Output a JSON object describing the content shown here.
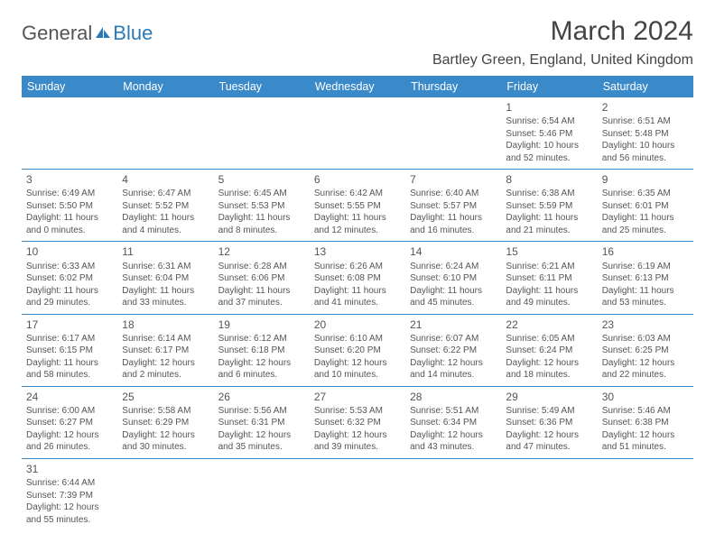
{
  "logo": {
    "text1": "General",
    "text2": "Blue",
    "icon_color": "#2a7ab8"
  },
  "title": "March 2024",
  "location": "Bartley Green, England, United Kingdom",
  "header_bg": "#3a89c9",
  "header_fg": "#ffffff",
  "border_color": "#3a89c9",
  "text_color": "#555555",
  "day_headers": [
    "Sunday",
    "Monday",
    "Tuesday",
    "Wednesday",
    "Thursday",
    "Friday",
    "Saturday"
  ],
  "weeks": [
    [
      null,
      null,
      null,
      null,
      null,
      {
        "n": "1",
        "sunrise": "Sunrise: 6:54 AM",
        "sunset": "Sunset: 5:46 PM",
        "day": "Daylight: 10 hours and 52 minutes."
      },
      {
        "n": "2",
        "sunrise": "Sunrise: 6:51 AM",
        "sunset": "Sunset: 5:48 PM",
        "day": "Daylight: 10 hours and 56 minutes."
      }
    ],
    [
      {
        "n": "3",
        "sunrise": "Sunrise: 6:49 AM",
        "sunset": "Sunset: 5:50 PM",
        "day": "Daylight: 11 hours and 0 minutes."
      },
      {
        "n": "4",
        "sunrise": "Sunrise: 6:47 AM",
        "sunset": "Sunset: 5:52 PM",
        "day": "Daylight: 11 hours and 4 minutes."
      },
      {
        "n": "5",
        "sunrise": "Sunrise: 6:45 AM",
        "sunset": "Sunset: 5:53 PM",
        "day": "Daylight: 11 hours and 8 minutes."
      },
      {
        "n": "6",
        "sunrise": "Sunrise: 6:42 AM",
        "sunset": "Sunset: 5:55 PM",
        "day": "Daylight: 11 hours and 12 minutes."
      },
      {
        "n": "7",
        "sunrise": "Sunrise: 6:40 AM",
        "sunset": "Sunset: 5:57 PM",
        "day": "Daylight: 11 hours and 16 minutes."
      },
      {
        "n": "8",
        "sunrise": "Sunrise: 6:38 AM",
        "sunset": "Sunset: 5:59 PM",
        "day": "Daylight: 11 hours and 21 minutes."
      },
      {
        "n": "9",
        "sunrise": "Sunrise: 6:35 AM",
        "sunset": "Sunset: 6:01 PM",
        "day": "Daylight: 11 hours and 25 minutes."
      }
    ],
    [
      {
        "n": "10",
        "sunrise": "Sunrise: 6:33 AM",
        "sunset": "Sunset: 6:02 PM",
        "day": "Daylight: 11 hours and 29 minutes."
      },
      {
        "n": "11",
        "sunrise": "Sunrise: 6:31 AM",
        "sunset": "Sunset: 6:04 PM",
        "day": "Daylight: 11 hours and 33 minutes."
      },
      {
        "n": "12",
        "sunrise": "Sunrise: 6:28 AM",
        "sunset": "Sunset: 6:06 PM",
        "day": "Daylight: 11 hours and 37 minutes."
      },
      {
        "n": "13",
        "sunrise": "Sunrise: 6:26 AM",
        "sunset": "Sunset: 6:08 PM",
        "day": "Daylight: 11 hours and 41 minutes."
      },
      {
        "n": "14",
        "sunrise": "Sunrise: 6:24 AM",
        "sunset": "Sunset: 6:10 PM",
        "day": "Daylight: 11 hours and 45 minutes."
      },
      {
        "n": "15",
        "sunrise": "Sunrise: 6:21 AM",
        "sunset": "Sunset: 6:11 PM",
        "day": "Daylight: 11 hours and 49 minutes."
      },
      {
        "n": "16",
        "sunrise": "Sunrise: 6:19 AM",
        "sunset": "Sunset: 6:13 PM",
        "day": "Daylight: 11 hours and 53 minutes."
      }
    ],
    [
      {
        "n": "17",
        "sunrise": "Sunrise: 6:17 AM",
        "sunset": "Sunset: 6:15 PM",
        "day": "Daylight: 11 hours and 58 minutes."
      },
      {
        "n": "18",
        "sunrise": "Sunrise: 6:14 AM",
        "sunset": "Sunset: 6:17 PM",
        "day": "Daylight: 12 hours and 2 minutes."
      },
      {
        "n": "19",
        "sunrise": "Sunrise: 6:12 AM",
        "sunset": "Sunset: 6:18 PM",
        "day": "Daylight: 12 hours and 6 minutes."
      },
      {
        "n": "20",
        "sunrise": "Sunrise: 6:10 AM",
        "sunset": "Sunset: 6:20 PM",
        "day": "Daylight: 12 hours and 10 minutes."
      },
      {
        "n": "21",
        "sunrise": "Sunrise: 6:07 AM",
        "sunset": "Sunset: 6:22 PM",
        "day": "Daylight: 12 hours and 14 minutes."
      },
      {
        "n": "22",
        "sunrise": "Sunrise: 6:05 AM",
        "sunset": "Sunset: 6:24 PM",
        "day": "Daylight: 12 hours and 18 minutes."
      },
      {
        "n": "23",
        "sunrise": "Sunrise: 6:03 AM",
        "sunset": "Sunset: 6:25 PM",
        "day": "Daylight: 12 hours and 22 minutes."
      }
    ],
    [
      {
        "n": "24",
        "sunrise": "Sunrise: 6:00 AM",
        "sunset": "Sunset: 6:27 PM",
        "day": "Daylight: 12 hours and 26 minutes."
      },
      {
        "n": "25",
        "sunrise": "Sunrise: 5:58 AM",
        "sunset": "Sunset: 6:29 PM",
        "day": "Daylight: 12 hours and 30 minutes."
      },
      {
        "n": "26",
        "sunrise": "Sunrise: 5:56 AM",
        "sunset": "Sunset: 6:31 PM",
        "day": "Daylight: 12 hours and 35 minutes."
      },
      {
        "n": "27",
        "sunrise": "Sunrise: 5:53 AM",
        "sunset": "Sunset: 6:32 PM",
        "day": "Daylight: 12 hours and 39 minutes."
      },
      {
        "n": "28",
        "sunrise": "Sunrise: 5:51 AM",
        "sunset": "Sunset: 6:34 PM",
        "day": "Daylight: 12 hours and 43 minutes."
      },
      {
        "n": "29",
        "sunrise": "Sunrise: 5:49 AM",
        "sunset": "Sunset: 6:36 PM",
        "day": "Daylight: 12 hours and 47 minutes."
      },
      {
        "n": "30",
        "sunrise": "Sunrise: 5:46 AM",
        "sunset": "Sunset: 6:38 PM",
        "day": "Daylight: 12 hours and 51 minutes."
      }
    ],
    [
      {
        "n": "31",
        "sunrise": "Sunrise: 6:44 AM",
        "sunset": "Sunset: 7:39 PM",
        "day": "Daylight: 12 hours and 55 minutes."
      },
      null,
      null,
      null,
      null,
      null,
      null
    ]
  ]
}
